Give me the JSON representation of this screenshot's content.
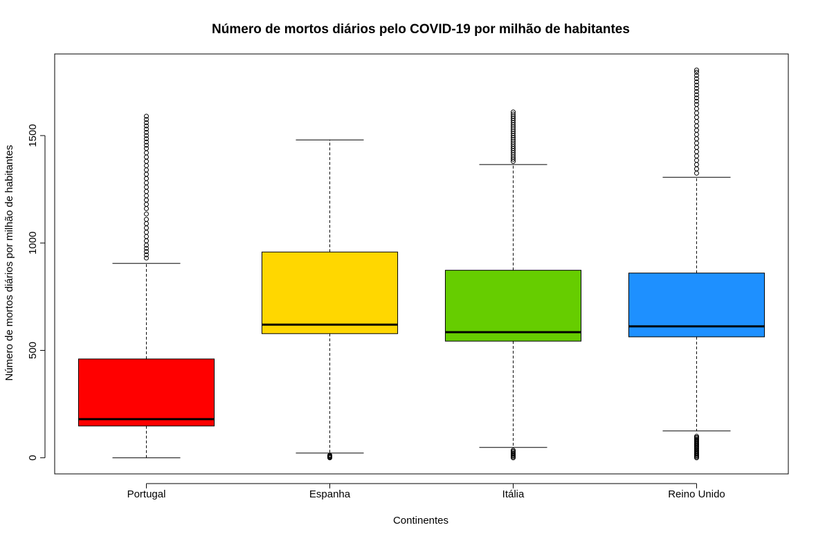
{
  "chart_data": {
    "type": "boxplot",
    "title": "Número de mortos diários pelo COVID-19 por milhão de habitantes",
    "xlabel": "Continentes",
    "ylabel": "Número de mortos diários por milhão de habitantes",
    "ylim": [
      -75,
      1880
    ],
    "yticks": [
      0,
      500,
      1000,
      1500
    ],
    "grid": false,
    "series": [
      {
        "name": "Portugal",
        "color": "#ff0000",
        "whisker_low": 0,
        "q1": 148,
        "median": 180,
        "q3": 460,
        "whisker_high": 905,
        "outliers": [
          930,
          945,
          960,
          975,
          990,
          1010,
          1030,
          1050,
          1070,
          1090,
          1110,
          1135,
          1160,
          1180,
          1200,
          1220,
          1240,
          1260,
          1280,
          1300,
          1320,
          1340,
          1360,
          1380,
          1400,
          1420,
          1440,
          1455,
          1470,
          1485,
          1500,
          1515,
          1530,
          1545,
          1560,
          1575,
          1590
        ]
      },
      {
        "name": "Espanha",
        "color": "#ffd700",
        "whisker_low": 22,
        "q1": 578,
        "median": 620,
        "q3": 958,
        "whisker_high": 1480,
        "outliers": [
          0,
          3,
          6,
          9,
          12
        ]
      },
      {
        "name": "Itália",
        "color": "#66cd00",
        "whisker_low": 48,
        "q1": 543,
        "median": 585,
        "q3": 873,
        "whisker_high": 1365,
        "outliers": [
          0,
          5,
          10,
          15,
          20,
          25,
          30,
          35,
          1380,
          1390,
          1400,
          1410,
          1420,
          1430,
          1440,
          1450,
          1460,
          1470,
          1480,
          1490,
          1500,
          1510,
          1520,
          1530,
          1540,
          1550,
          1560,
          1570,
          1580,
          1590,
          1600,
          1610
        ]
      },
      {
        "name": "Reino Unido",
        "color": "#1e90ff",
        "whisker_low": 125,
        "q1": 563,
        "median": 612,
        "q3": 860,
        "whisker_high": 1306,
        "outliers": [
          0,
          5,
          10,
          15,
          20,
          25,
          30,
          35,
          40,
          45,
          50,
          55,
          60,
          65,
          70,
          75,
          80,
          85,
          90,
          95,
          100,
          1325,
          1345,
          1365,
          1385,
          1405,
          1425,
          1445,
          1465,
          1485,
          1505,
          1525,
          1545,
          1565,
          1585,
          1605,
          1625,
          1645,
          1660,
          1675,
          1690,
          1705,
          1720,
          1735,
          1750,
          1765,
          1780,
          1795,
          1805
        ]
      }
    ]
  }
}
